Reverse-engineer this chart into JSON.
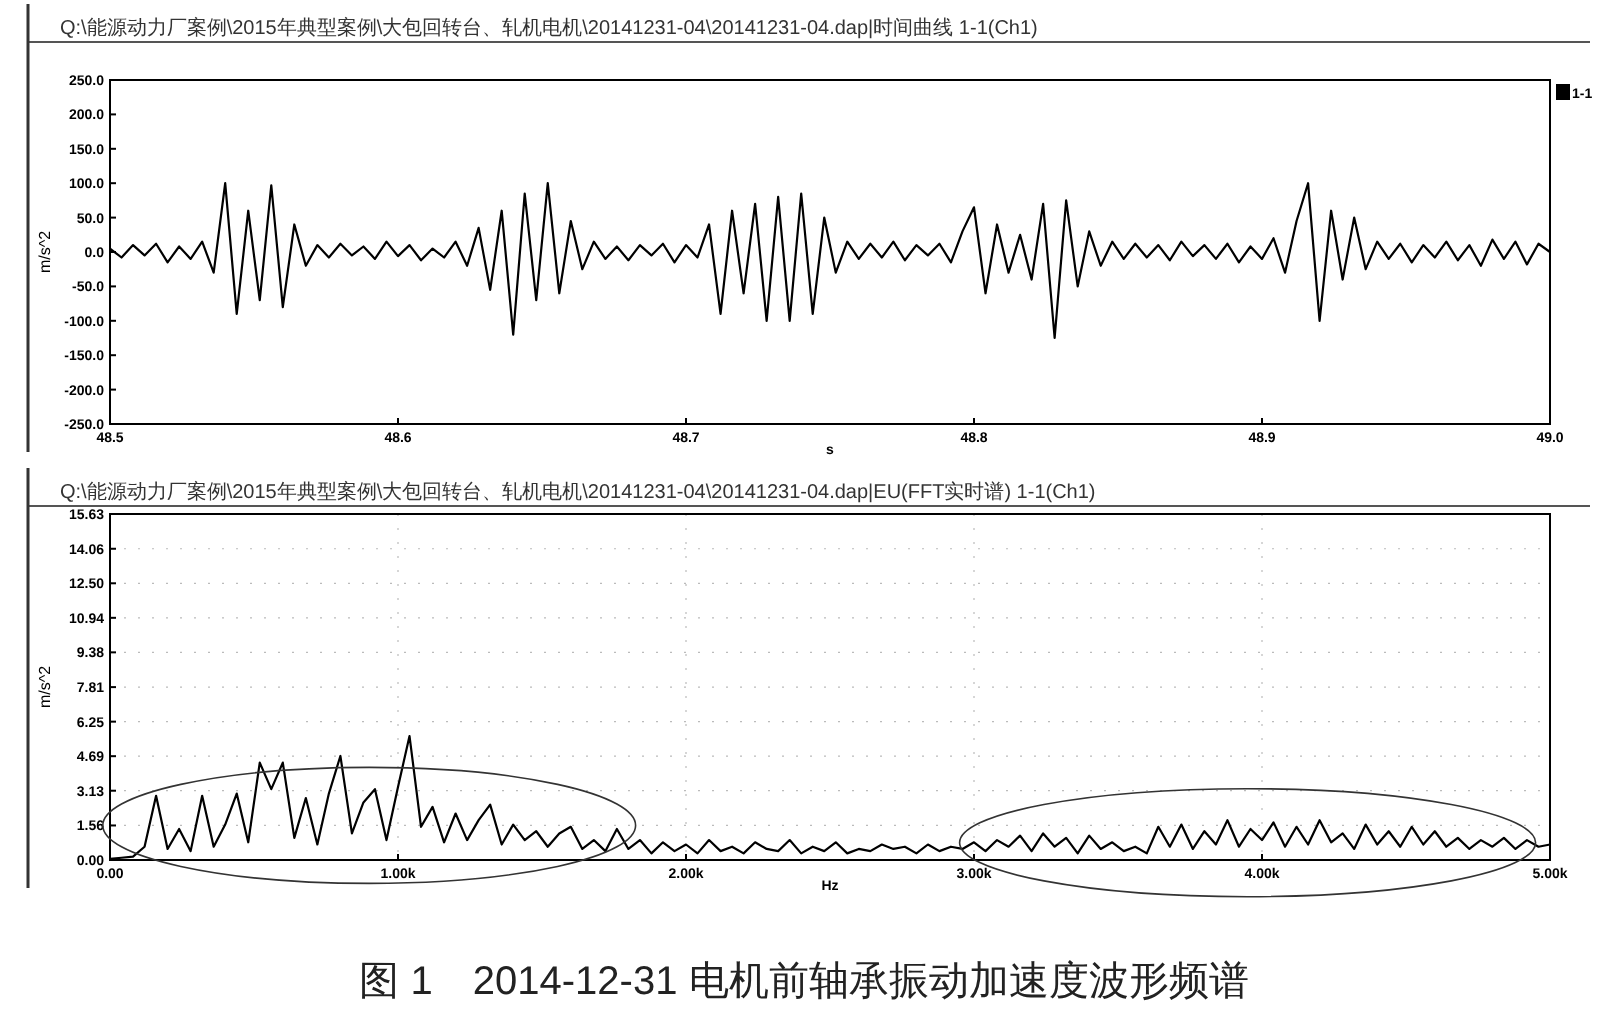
{
  "chart_data": [
    {
      "type": "line",
      "subtitle": "Q:\\能源动力厂案例\\2015年典型案例\\大包回转台、轧机电机\\20141231-04\\20141231-04.dap|时间曲线  1-1(Ch1)",
      "xlabel": "s",
      "ylabel": "m/s^2",
      "x": [
        48.5,
        48.504,
        48.508,
        48.512,
        48.516,
        48.52,
        48.524,
        48.528,
        48.532,
        48.536,
        48.54,
        48.544,
        48.548,
        48.552,
        48.556,
        48.56,
        48.564,
        48.568,
        48.572,
        48.576,
        48.58,
        48.584,
        48.588,
        48.592,
        48.596,
        48.6,
        48.604,
        48.608,
        48.612,
        48.616,
        48.62,
        48.624,
        48.628,
        48.632,
        48.636,
        48.64,
        48.644,
        48.648,
        48.652,
        48.656,
        48.66,
        48.664,
        48.668,
        48.672,
        48.676,
        48.68,
        48.684,
        48.688,
        48.692,
        48.696,
        48.7,
        48.704,
        48.708,
        48.712,
        48.716,
        48.72,
        48.724,
        48.728,
        48.732,
        48.736,
        48.74,
        48.744,
        48.748,
        48.752,
        48.756,
        48.76,
        48.764,
        48.768,
        48.772,
        48.776,
        48.78,
        48.784,
        48.788,
        48.792,
        48.796,
        48.8,
        48.804,
        48.808,
        48.812,
        48.816,
        48.82,
        48.824,
        48.828,
        48.832,
        48.836,
        48.84,
        48.844,
        48.848,
        48.852,
        48.856,
        48.86,
        48.864,
        48.868,
        48.872,
        48.876,
        48.88,
        48.884,
        48.888,
        48.892,
        48.896,
        48.9,
        48.904,
        48.908,
        48.912,
        48.916,
        48.92,
        48.924,
        48.928,
        48.932,
        48.936,
        48.94,
        48.944,
        48.948,
        48.952,
        48.956,
        48.96,
        48.964,
        48.968,
        48.972,
        48.976,
        48.98,
        48.984,
        48.988,
        48.992,
        48.996,
        49.0
      ],
      "series": [
        {
          "name": "1-1",
          "color": "#000000",
          "values": [
            5,
            -8,
            10,
            -5,
            12,
            -15,
            8,
            -10,
            15,
            -30,
            100,
            -90,
            60,
            -70,
            97,
            -80,
            40,
            -20,
            10,
            -8,
            12,
            -5,
            8,
            -10,
            15,
            -6,
            10,
            -12,
            5,
            -8,
            15,
            -20,
            35,
            -55,
            60,
            -120,
            85,
            -70,
            100,
            -60,
            45,
            -25,
            15,
            -10,
            8,
            -12,
            10,
            -5,
            12,
            -15,
            10,
            -8,
            40,
            -90,
            60,
            -60,
            70,
            -100,
            80,
            -100,
            85,
            -90,
            50,
            -30,
            15,
            -10,
            12,
            -8,
            15,
            -12,
            10,
            -5,
            12,
            -15,
            30,
            65,
            -60,
            40,
            -30,
            25,
            -40,
            70,
            -125,
            75,
            -50,
            30,
            -20,
            15,
            -10,
            12,
            -8,
            10,
            -12,
            15,
            -6,
            10,
            -10,
            12,
            -15,
            8,
            -10,
            20,
            -30,
            45,
            100,
            -100,
            60,
            -40,
            50,
            -25,
            15,
            -10,
            12,
            -15,
            10,
            -8,
            15,
            -12,
            10,
            -20,
            18,
            -10,
            15,
            -18,
            12,
            0
          ]
        }
      ],
      "xlim": [
        48.5,
        49.0
      ],
      "ylim": [
        -250,
        250
      ],
      "xticks": [
        {
          "value": 48.5,
          "label": "48.5"
        },
        {
          "value": 48.6,
          "label": "48.6"
        },
        {
          "value": 48.7,
          "label": "48.7"
        },
        {
          "value": 48.8,
          "label": "48.8"
        },
        {
          "value": 48.9,
          "label": "48.9"
        },
        {
          "value": 49.0,
          "label": "49.0"
        }
      ],
      "yticks": [
        {
          "value": -250,
          "label": "-250.0"
        },
        {
          "value": -200,
          "label": "-200.0"
        },
        {
          "value": -150,
          "label": "-150.0"
        },
        {
          "value": -100,
          "label": "-100.0"
        },
        {
          "value": -50,
          "label": "-50.0"
        },
        {
          "value": 0,
          "label": "0.0"
        },
        {
          "value": 50,
          "label": "50.0"
        },
        {
          "value": 100,
          "label": "100.0"
        },
        {
          "value": 150,
          "label": "150.0"
        },
        {
          "value": 200,
          "label": "200.0"
        },
        {
          "value": 250,
          "label": "250.0"
        }
      ],
      "legend": "top right",
      "line_style": "solid"
    },
    {
      "type": "line",
      "subtitle": "Q:\\能源动力厂案例\\2015年典型案例\\大包回转台、轧机电机\\20141231-04\\20141231-04.dap|EU(FFT实时谱)  1-1(Ch1)",
      "xlabel": "Hz",
      "ylabel": "m/s^2",
      "x": [
        0,
        40,
        80,
        120,
        160,
        200,
        240,
        280,
        320,
        360,
        400,
        440,
        480,
        520,
        560,
        600,
        640,
        680,
        720,
        760,
        800,
        840,
        880,
        920,
        960,
        1000,
        1040,
        1080,
        1120,
        1160,
        1200,
        1240,
        1280,
        1320,
        1360,
        1400,
        1440,
        1480,
        1520,
        1560,
        1600,
        1640,
        1680,
        1720,
        1760,
        1800,
        1840,
        1880,
        1920,
        1960,
        2000,
        2040,
        2080,
        2120,
        2160,
        2200,
        2240,
        2280,
        2320,
        2360,
        2400,
        2440,
        2480,
        2520,
        2560,
        2600,
        2640,
        2680,
        2720,
        2760,
        2800,
        2840,
        2880,
        2920,
        2960,
        3000,
        3040,
        3080,
        3120,
        3160,
        3200,
        3240,
        3280,
        3320,
        3360,
        3400,
        3440,
        3480,
        3520,
        3560,
        3600,
        3640,
        3680,
        3720,
        3760,
        3800,
        3840,
        3880,
        3920,
        3960,
        4000,
        4040,
        4080,
        4120,
        4160,
        4200,
        4240,
        4280,
        4320,
        4360,
        4400,
        4440,
        4480,
        4520,
        4560,
        4600,
        4640,
        4680,
        4720,
        4760,
        4800,
        4840,
        4880,
        4920,
        4960,
        5000
      ],
      "series": [
        {
          "color": "#000000",
          "values": [
            0.05,
            0.1,
            0.15,
            0.6,
            2.9,
            0.5,
            1.4,
            0.4,
            2.9,
            0.6,
            1.6,
            3.0,
            0.8,
            4.4,
            3.2,
            4.4,
            1.0,
            2.8,
            0.7,
            3.0,
            4.7,
            1.2,
            2.6,
            3.2,
            0.9,
            3.3,
            5.6,
            1.5,
            2.4,
            0.8,
            2.1,
            0.9,
            1.8,
            2.5,
            0.7,
            1.6,
            0.9,
            1.3,
            0.6,
            1.2,
            1.5,
            0.5,
            0.9,
            0.4,
            1.4,
            0.5,
            0.9,
            0.3,
            0.8,
            0.4,
            0.7,
            0.3,
            0.9,
            0.4,
            0.6,
            0.3,
            0.8,
            0.5,
            0.4,
            0.9,
            0.3,
            0.6,
            0.4,
            0.8,
            0.3,
            0.5,
            0.4,
            0.7,
            0.5,
            0.6,
            0.3,
            0.7,
            0.4,
            0.6,
            0.5,
            0.8,
            0.4,
            0.9,
            0.6,
            1.1,
            0.4,
            1.2,
            0.6,
            1.0,
            0.3,
            1.1,
            0.5,
            0.8,
            0.4,
            0.6,
            0.3,
            1.5,
            0.6,
            1.6,
            0.5,
            1.3,
            0.7,
            1.8,
            0.6,
            1.4,
            0.9,
            1.7,
            0.6,
            1.5,
            0.7,
            1.8,
            0.8,
            1.2,
            0.5,
            1.6,
            0.7,
            1.3,
            0.6,
            1.5,
            0.7,
            1.3,
            0.6,
            1.0,
            0.5,
            0.9,
            0.6,
            1.0,
            0.5,
            0.9,
            0.6,
            0.7
          ]
        }
      ],
      "xlim": [
        0,
        5000
      ],
      "ylim": [
        0,
        15.63
      ],
      "xticks": [
        {
          "value": 0,
          "label": "0.00"
        },
        {
          "value": 1000,
          "label": "1.00k"
        },
        {
          "value": 2000,
          "label": "2.00k"
        },
        {
          "value": 3000,
          "label": "3.00k"
        },
        {
          "value": 4000,
          "label": "4.00k"
        },
        {
          "value": 5000,
          "label": "5.00k"
        }
      ],
      "yticks": [
        {
          "value": 0,
          "label": "0.00"
        },
        {
          "value": 1.56,
          "label": "1.56"
        },
        {
          "value": 3.13,
          "label": "3.13"
        },
        {
          "value": 4.69,
          "label": "4.69"
        },
        {
          "value": 6.25,
          "label": "6.25"
        },
        {
          "value": 7.81,
          "label": "7.81"
        },
        {
          "value": 9.38,
          "label": "9.38"
        },
        {
          "value": 10.94,
          "label": "10.94"
        },
        {
          "value": 12.5,
          "label": "12.50"
        },
        {
          "value": 14.06,
          "label": "14.06"
        },
        {
          "value": 15.63,
          "label": "15.63"
        }
      ],
      "grid": true,
      "line_style": "solid",
      "annotations": [
        "图 1　2014-12-31 电机前轴承振动加速度波形频谱"
      ]
    }
  ]
}
